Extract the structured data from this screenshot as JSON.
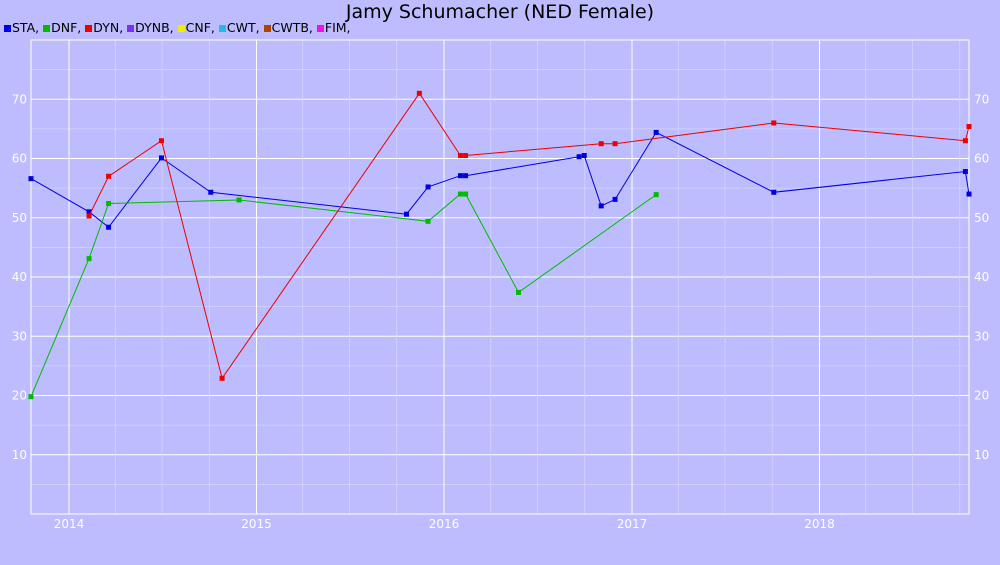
{
  "chart_data": {
    "type": "line",
    "title": "Jamy Schumacher (NED Female)",
    "xlabel": "",
    "ylabel": "",
    "xlim": [
      "2013-10-19",
      "2018-10-19"
    ],
    "ylim": [
      0,
      80
    ],
    "y_ticks": [
      10,
      20,
      30,
      40,
      50,
      60,
      70
    ],
    "x_ticks": [
      "2014",
      "2015",
      "2016",
      "2017",
      "2018"
    ],
    "grid": true,
    "legend_position": "top-left",
    "legend": [
      {
        "name": "STA,",
        "color": "#0000dd"
      },
      {
        "name": "DNF,",
        "color": "#00bb00"
      },
      {
        "name": "DYN,",
        "color": "#ee0000"
      },
      {
        "name": "DYNB,",
        "color": "#7733ee"
      },
      {
        "name": "CNF,",
        "color": "#eeee00"
      },
      {
        "name": "CWT,",
        "color": "#22bbee"
      },
      {
        "name": "CWTB,",
        "color": "#aa4400"
      },
      {
        "name": "FIM,",
        "color": "#ee11ee"
      }
    ],
    "series": [
      {
        "name": "STA",
        "color": "#0000dd",
        "points": [
          [
            "2013-10-19",
            56.6
          ],
          [
            "2014-02-09",
            51.0
          ],
          [
            "2014-03-19",
            48.4
          ],
          [
            "2014-06-30",
            60.1
          ],
          [
            "2014-10-04",
            54.3
          ],
          [
            "2015-10-20",
            50.6
          ],
          [
            "2015-12-01",
            55.2
          ],
          [
            "2016-02-02",
            57.1
          ],
          [
            "2016-02-12",
            57.1
          ],
          [
            "2016-09-20",
            60.3
          ],
          [
            "2016-09-30",
            60.5
          ],
          [
            "2016-11-02",
            52.0
          ],
          [
            "2016-11-29",
            53.1
          ],
          [
            "2017-02-17",
            64.4
          ],
          [
            "2017-10-04",
            54.3
          ],
          [
            "2018-10-12",
            57.8
          ],
          [
            "2018-10-19",
            54.0
          ]
        ]
      },
      {
        "name": "DNF",
        "color": "#00bb00",
        "points": [
          [
            "2013-10-19",
            19.8
          ],
          [
            "2014-02-09",
            43.1
          ],
          [
            "2014-03-19",
            52.4
          ],
          [
            "2014-11-28",
            53.0
          ],
          [
            "2015-12-01",
            49.4
          ],
          [
            "2016-02-02",
            54.0
          ],
          [
            "2016-02-12",
            54.0
          ],
          [
            "2016-05-25",
            37.4
          ],
          [
            "2017-02-17",
            53.9
          ]
        ]
      },
      {
        "name": "DYN",
        "color": "#ee0000",
        "points": [
          [
            "2014-02-09",
            50.3
          ],
          [
            "2014-03-19",
            57.0
          ],
          [
            "2014-06-30",
            63.0
          ],
          [
            "2014-10-26",
            22.9
          ],
          [
            "2015-11-14",
            71.0
          ],
          [
            "2016-02-02",
            60.5
          ],
          [
            "2016-02-12",
            60.5
          ],
          [
            "2016-11-02",
            62.5
          ],
          [
            "2016-11-29",
            62.5
          ],
          [
            "2017-10-04",
            66.0
          ],
          [
            "2018-10-12",
            63.0
          ],
          [
            "2018-10-19",
            65.4
          ]
        ]
      }
    ]
  }
}
